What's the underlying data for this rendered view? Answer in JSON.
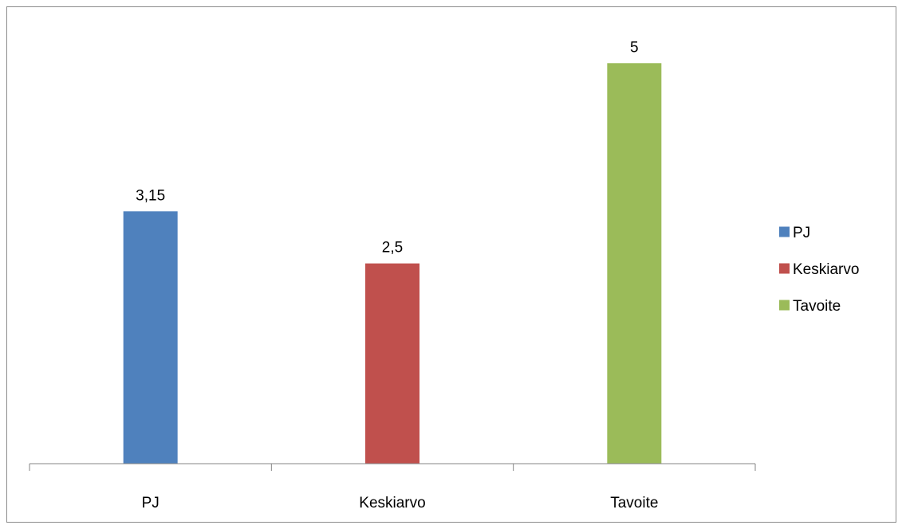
{
  "chart_data": {
    "type": "bar",
    "categories": [
      "PJ",
      "Keskiarvo",
      "Tavoite"
    ],
    "values": [
      3.15,
      2.5,
      5
    ],
    "value_labels": [
      "3,15",
      "2,5",
      "5"
    ],
    "colors": [
      "#4f81bd",
      "#c0504d",
      "#9bbb59"
    ],
    "legend": {
      "position": "right",
      "entries": [
        "PJ",
        "Keskiarvo",
        "Tavoite"
      ]
    },
    "ylim": [
      0,
      5.5
    ],
    "grid": false,
    "title": "",
    "xlabel": "",
    "ylabel": ""
  }
}
